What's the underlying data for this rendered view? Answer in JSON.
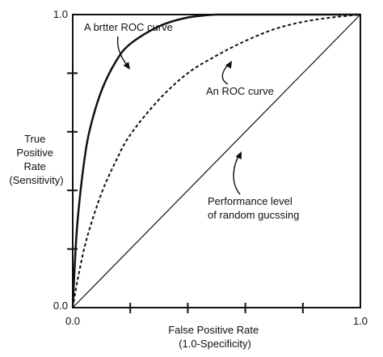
{
  "chart_data": {
    "type": "line",
    "title": "",
    "xlabel_lines": [
      "False Positive Rate",
      "(1.0-Specificity)"
    ],
    "ylabel_lines": [
      "True",
      "Positive",
      "Rate",
      "(Sensitivity)"
    ],
    "xlim": [
      0,
      1
    ],
    "ylim": [
      0,
      1
    ],
    "grid": false,
    "x_tick_labels": [
      {
        "value": 0,
        "label": "0.0"
      },
      {
        "value": 1,
        "label": "1.0"
      }
    ],
    "y_tick_labels": [
      {
        "value": 0,
        "label": "0.0"
      },
      {
        "value": 1,
        "label": "1.0"
      }
    ],
    "x_tick_marks": [
      0.2,
      0.4,
      0.6,
      0.8
    ],
    "y_tick_marks": [
      0.2,
      0.4,
      0.6,
      0.8
    ],
    "series": [
      {
        "name": "A brtter ROC curve",
        "style": "solid",
        "x": [
          0,
          0.01,
          0.02,
          0.04,
          0.06,
          0.1,
          0.15,
          0.2,
          0.3,
          0.4,
          0.5,
          0.6,
          0.7,
          0.8,
          0.9,
          1.0
        ],
        "y": [
          0,
          0.2,
          0.33,
          0.5,
          0.61,
          0.74,
          0.84,
          0.9,
          0.96,
          0.99,
          1.0,
          1.0,
          1.0,
          1.0,
          1.0,
          1.0
        ]
      },
      {
        "name": "An ROC curve",
        "style": "dashed",
        "x": [
          0,
          0.02,
          0.05,
          0.1,
          0.15,
          0.2,
          0.3,
          0.4,
          0.5,
          0.6,
          0.7,
          0.8,
          0.9,
          1.0
        ],
        "y": [
          0,
          0.11,
          0.24,
          0.39,
          0.5,
          0.59,
          0.71,
          0.8,
          0.86,
          0.91,
          0.95,
          0.975,
          0.99,
          1.0
        ]
      },
      {
        "name": "Performance level of random gucssing",
        "style": "thin",
        "x": [
          0,
          1
        ],
        "y": [
          0,
          1
        ]
      }
    ],
    "annotations": [
      {
        "lines": [
          "A brtter ROC curve"
        ],
        "target": "A brtter ROC curve"
      },
      {
        "lines": [
          "An ROC curve"
        ],
        "target": "An ROC curve"
      },
      {
        "lines": [
          "Performance level",
          "of random gucssing"
        ],
        "target": "Performance level of random gucssing"
      }
    ]
  }
}
